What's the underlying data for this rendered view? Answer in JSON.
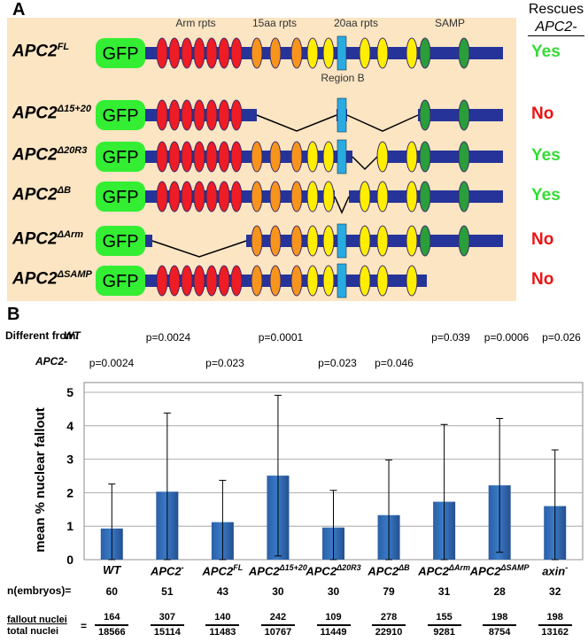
{
  "panelA": {
    "label": "A",
    "rescue_header_line1": "Rescues",
    "rescue_header_line2": "APC2-",
    "domain_labels": {
      "arm": "Arm rpts",
      "aa15": "15aa rpts",
      "aa20": "20aa rpts",
      "samp": "SAMP",
      "regionB": "Region B"
    },
    "gfp_label": "GFP",
    "constructs": [
      {
        "name": "APC2",
        "sup": "FL",
        "rescues": "Yes"
      },
      {
        "name": "APC2",
        "sup": "Δ15+20",
        "rescues": "No"
      },
      {
        "name": "APC2",
        "sup": "Δ20R3",
        "rescues": "Yes"
      },
      {
        "name": "APC2",
        "sup": "ΔB",
        "rescues": "Yes"
      },
      {
        "name": "APC2",
        "sup": "ΔArm",
        "rescues": "No"
      },
      {
        "name": "APC2",
        "sup": "ΔSAMP",
        "rescues": "No"
      }
    ],
    "colors": {
      "bg": "#fbe5c3",
      "backbone": "#26349a",
      "gfp": "#33ee33",
      "arm": "#ee1c24",
      "aa15": "#f7941d",
      "aa20": "#ffee00",
      "regionB": "#29abe2",
      "samp": "#2a9e3a",
      "yes": "#33dd33",
      "no": "#ee1111"
    }
  },
  "panelB": {
    "label": "B",
    "different_from_line1": "Different",
    "different_from_line2": "from:",
    "row_wt": "WT",
    "row_apc2": "APC2-",
    "pvals_wt": [
      "",
      "p=0.0024",
      "",
      "p=0.0001",
      "",
      "",
      "p=0.039",
      "p=0.0006",
      "p=0.026"
    ],
    "pvals_apc2": [
      "p=0.0024",
      "",
      "p=0.023",
      "",
      "p=0.023",
      "p=0.046",
      "",
      "",
      ""
    ],
    "n_label": "n(embryos)=",
    "fraction_label_top": "fallout nuclei",
    "fraction_label_bottom": "total nuclei",
    "fraction_equals": "="
  },
  "chart_data": {
    "type": "bar",
    "ylabel": "mean % nuclear fallout",
    "ylim": [
      0,
      5
    ],
    "yticks": [
      "0",
      "1",
      "2",
      "3",
      "4",
      "5"
    ],
    "grid": true,
    "categories": [
      {
        "name": "WT",
        "sup": ""
      },
      {
        "name": "APC2",
        "sup": "-"
      },
      {
        "name": "APC2",
        "sup": "FL"
      },
      {
        "name": "APC2",
        "sup": "Δ15+20"
      },
      {
        "name": "APC2",
        "sup": "Δ20R3"
      },
      {
        "name": "APC2",
        "sup": "ΔB"
      },
      {
        "name": "APC2",
        "sup": "ΔArm"
      },
      {
        "name": "APC2",
        "sup": "ΔSAMP"
      },
      {
        "name": "axin",
        "sup": "-"
      }
    ],
    "values": [
      0.93,
      2.03,
      1.12,
      2.51,
      0.96,
      1.33,
      1.73,
      2.22,
      1.6
    ],
    "errors": [
      1.33,
      2.35,
      1.25,
      2.4,
      1.11,
      1.65,
      2.31,
      2.0,
      1.68
    ],
    "n_embryos": [
      "60",
      "51",
      "43",
      "30",
      "30",
      "79",
      "31",
      "28",
      "32"
    ],
    "fallout_nuclei": [
      "164",
      "307",
      "140",
      "242",
      "109",
      "278",
      "155",
      "198",
      "198"
    ],
    "total_nuclei": [
      "18566",
      "15114",
      "11483",
      "10767",
      "11449",
      "22910",
      "9281",
      "8754",
      "13162"
    ],
    "bar_color": "#3a7ac7"
  }
}
